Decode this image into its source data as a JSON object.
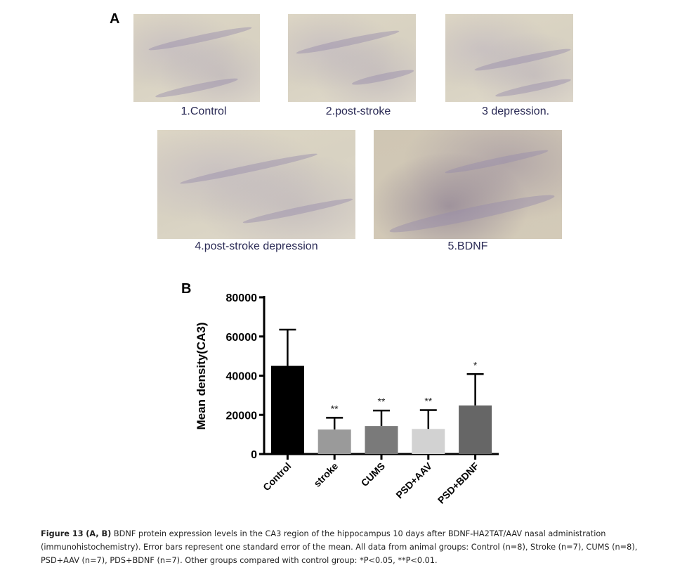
{
  "panel_a": {
    "letter": "A",
    "images": [
      {
        "label": "1.Control"
      },
      {
        "label": "2.post-stroke"
      },
      {
        "label": "3 depression."
      },
      {
        "label": "4.post-stroke depression"
      },
      {
        "label": "5.BDNF"
      }
    ]
  },
  "panel_b": {
    "letter": "B"
  },
  "chart_data": {
    "type": "bar",
    "categories": [
      "Control",
      "stroke",
      "CUMS",
      "PSD+AAV",
      "PSD+BDNF"
    ],
    "values": [
      45000,
      12500,
      14300,
      12800,
      24800
    ],
    "error_upper": [
      63500,
      18500,
      22200,
      22400,
      40800
    ],
    "significance": [
      "",
      "**",
      "**",
      "**",
      "*"
    ],
    "bar_colors": [
      "#000000",
      "#9a9a9a",
      "#7a7a7a",
      "#d2d2d2",
      "#666666"
    ],
    "ylabel": "Mean density(CA3)",
    "xlabel": "",
    "ylim": [
      0,
      80000
    ],
    "yticks": [
      0,
      20000,
      40000,
      60000,
      80000
    ],
    "grid": false
  },
  "caption": {
    "lead": "Figure 13",
    "panels": "(A, B)",
    "text": " BDNF protein expression levels in the CA3 region of the hippocampus 10 days after BDNF-HA2TAT/AAV nasal administration (immunohistochemistry). Error bars represent one standard error of the mean. All data from animal groups: Control (n=8), Stroke (n=7), CUMS (n=8), PSD+AAV (n=7), PDS+BDNF (n=7). Other groups compared with control group: *P<0.05, **P<0.01."
  }
}
